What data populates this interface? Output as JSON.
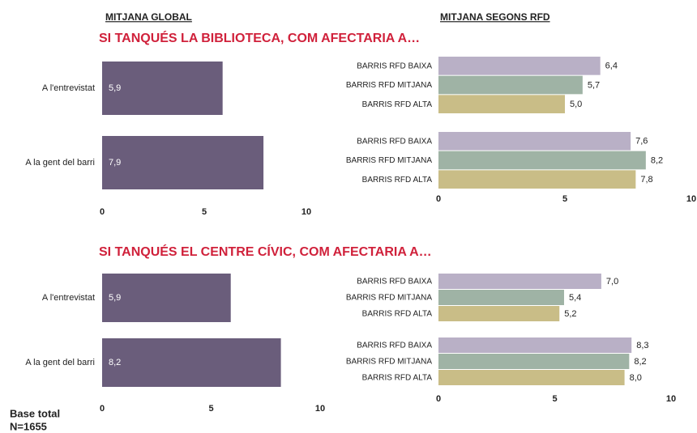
{
  "headers": {
    "global": "MITJANA GLOBAL",
    "rfd": "MITJANA SEGONS RFD"
  },
  "footer": [
    "Base total",
    "N=1655"
  ],
  "chart_data": [
    {
      "type": "bar",
      "title": "SI TANQUÉS LA BIBLIOTECA, COM AFECTARIA A…",
      "categories": [
        "A l'entrevistat",
        "A la gent del barri"
      ],
      "values": [
        5.9,
        7.9
      ],
      "value_labels": [
        "5,9",
        "7,9"
      ],
      "color": "#6a5d7b",
      "xlim": [
        0,
        10
      ],
      "xticks": [
        0,
        5,
        10
      ]
    },
    {
      "type": "grouped_bar",
      "series": [
        {
          "name": "BARRIS RFD BAIXA",
          "color": "#b9b0c6",
          "values": [
            6.4,
            7.6
          ],
          "value_labels": [
            "6,4",
            "7,6"
          ]
        },
        {
          "name": "BARRIS RFD MITJANA",
          "color": "#9fb3a5",
          "values": [
            5.7,
            8.2
          ],
          "value_labels": [
            "5,7",
            "8,2"
          ]
        },
        {
          "name": "BARRIS RFD ALTA",
          "color": "#c9bd87",
          "values": [
            5.0,
            7.8
          ],
          "value_labels": [
            "5,0",
            "7,8"
          ]
        }
      ],
      "xlim": [
        0,
        10
      ],
      "xticks": [
        0,
        5,
        10
      ]
    },
    {
      "type": "bar",
      "title": "SI TANQUÉS EL CENTRE CÍVIC, COM AFECTARIA A…",
      "categories": [
        "A l'entrevistat",
        "A la gent del barri"
      ],
      "values": [
        5.9,
        8.2
      ],
      "value_labels": [
        "5,9",
        "8,2"
      ],
      "color": "#6a5d7b",
      "xlim": [
        0,
        10
      ],
      "xticks": [
        0,
        5,
        10
      ]
    },
    {
      "type": "grouped_bar",
      "series": [
        {
          "name": "BARRIS RFD BAIXA",
          "color": "#b9b0c6",
          "values": [
            7.0,
            8.3
          ],
          "value_labels": [
            "7,0",
            "8,3"
          ]
        },
        {
          "name": "BARRIS RFD MITJANA",
          "color": "#9fb3a5",
          "values": [
            5.4,
            8.2
          ],
          "value_labels": [
            "5,4",
            "8,2"
          ]
        },
        {
          "name": "BARRIS RFD ALTA",
          "color": "#c9bd87",
          "values": [
            5.2,
            8.0
          ],
          "value_labels": [
            "5,2",
            "8,0"
          ]
        }
      ],
      "xlim": [
        0,
        10
      ],
      "xticks": [
        0,
        5,
        10
      ]
    }
  ]
}
